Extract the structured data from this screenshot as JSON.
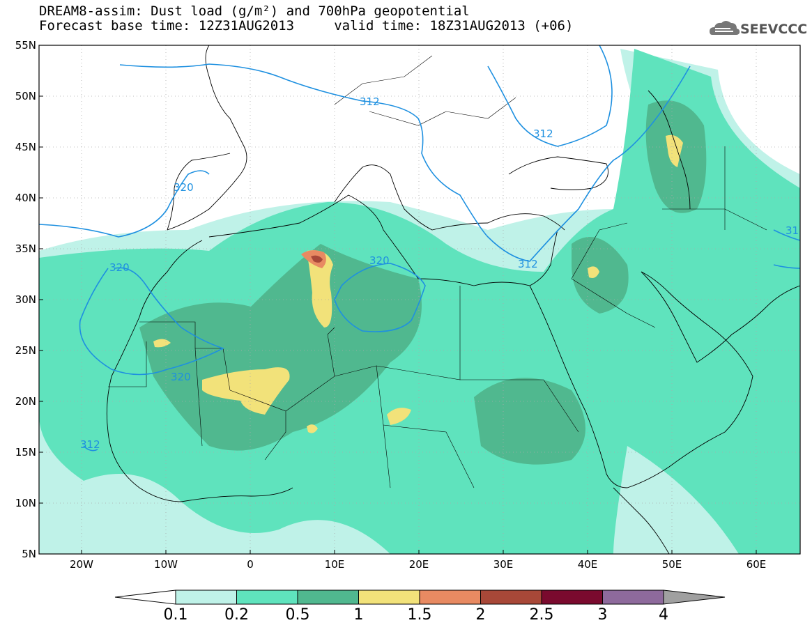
{
  "header": {
    "title_line1": "DREAM8-assim: Dust load (g/m²) and 700hPa geopotential",
    "title_line2": "Forecast base time: 12Z31AUG2013     valid time: 18Z31AUG2013 (+06)"
  },
  "logo": {
    "text": "SEEVCCC",
    "icon": "cloud-logo-icon"
  },
  "map": {
    "lon_range": [
      -25,
      65
    ],
    "lat_range": [
      5,
      55
    ],
    "lat_labels": [
      "55N",
      "50N",
      "45N",
      "40N",
      "35N",
      "30N",
      "25N",
      "20N",
      "15N",
      "10N",
      "5N"
    ],
    "lon_labels": [
      "20W",
      "10W",
      "0",
      "10E",
      "20E",
      "30E",
      "40E",
      "50E",
      "60E"
    ],
    "contour_labels": [
      "312",
      "320",
      "320",
      "320",
      "320",
      "312",
      "312",
      "31",
      "312"
    ],
    "contour_color": "#1e90e0"
  },
  "colorbar": {
    "levels": [
      "0.1",
      "0.2",
      "0.5",
      "1",
      "1.5",
      "2",
      "2.5",
      "3",
      "4"
    ],
    "colors": [
      "#ffffff",
      "#bff2e8",
      "#5fe3bd",
      "#50b88f",
      "#f2e27a",
      "#e88a62",
      "#a84838",
      "#7a0a2e",
      "#8e6a9c",
      "#a0a0a0"
    ],
    "unit_note": "g/m²"
  }
}
